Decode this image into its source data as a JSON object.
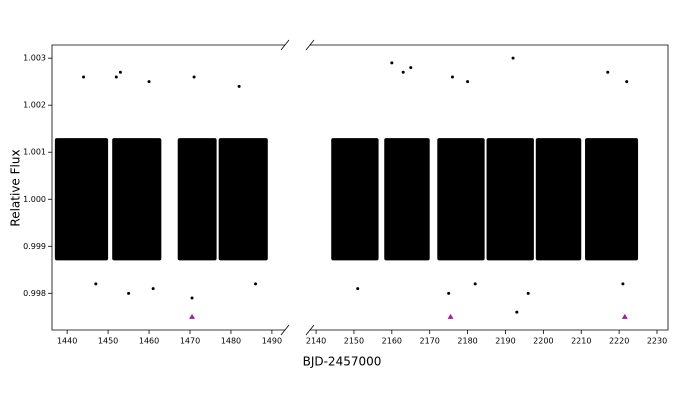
{
  "chart_data": [
    {
      "type": "scatter",
      "ylabel": "Relative Flux",
      "xlabel": "BJD-2457000",
      "xlim": [
        1436.3,
        1493.2
      ],
      "xticks": [
        1440,
        1450,
        1460,
        1470,
        1480,
        1490
      ],
      "ylim": [
        0.99722,
        1.00328
      ],
      "yticks": [
        0.998,
        0.999,
        {
          "value": 1.0,
          "label": "1.000"
        },
        1.001,
        1.002,
        1.003
      ],
      "bands": [
        {
          "x": [
            1437,
            1450
          ],
          "y": [
            0.9987,
            1.0013
          ]
        },
        {
          "x": [
            1451,
            1463
          ],
          "y": [
            0.9987,
            1.0013
          ]
        },
        {
          "x": [
            1467,
            1476.5
          ],
          "y": [
            0.9987,
            1.0013
          ]
        },
        {
          "x": [
            1477,
            1489
          ],
          "y": [
            0.9987,
            1.0013
          ]
        }
      ],
      "series": [
        {
          "color": "#000000",
          "marker": "dot",
          "x": [
            1444,
            1452,
            1453,
            1460,
            1471,
            1482,
            1447,
            1455,
            1461,
            1470.5,
            1486
          ],
          "values": [
            1.0026,
            1.0026,
            1.0027,
            1.0025,
            1.0026,
            1.0024,
            0.9982,
            0.998,
            0.9981,
            0.9979,
            0.9982
          ]
        },
        {
          "color": "#a020a0",
          "marker": "triangle",
          "x": [
            1470.5
          ],
          "values": [
            0.9975
          ]
        }
      ]
    },
    {
      "type": "scatter",
      "xlim": [
        2138.4,
        2232.9
      ],
      "xticks": [
        2140,
        2150,
        2160,
        2170,
        2180,
        2190,
        2200,
        2210,
        2220,
        2230
      ],
      "ylim": [
        0.99722,
        1.00328
      ],
      "bands": [
        {
          "x": [
            2144,
            2156.5
          ],
          "y": [
            0.9987,
            1.0013
          ]
        },
        {
          "x": [
            2158,
            2170
          ],
          "y": [
            0.9987,
            1.0013
          ]
        },
        {
          "x": [
            2172,
            2184.5
          ],
          "y": [
            0.9987,
            1.0013
          ]
        },
        {
          "x": [
            2185,
            2197.5
          ],
          "y": [
            0.9987,
            1.0013
          ]
        },
        {
          "x": [
            2198,
            2210
          ],
          "y": [
            0.9987,
            1.0013
          ]
        },
        {
          "x": [
            2211,
            2225
          ],
          "y": [
            0.9987,
            1.0013
          ]
        }
      ],
      "series": [
        {
          "color": "#000000",
          "marker": "dot",
          "x": [
            2160,
            2163,
            2165,
            2176,
            2180,
            2192,
            2217,
            2222,
            2175,
            2182,
            2193,
            2196,
            2221,
            2151
          ],
          "values": [
            1.0029,
            1.0027,
            1.0028,
            1.0026,
            1.0025,
            1.003,
            1.0027,
            1.0025,
            0.998,
            0.9982,
            0.9976,
            0.998,
            0.9982,
            0.9981
          ]
        },
        {
          "color": "#a020a0",
          "marker": "triangle",
          "x": [
            2175.5,
            2221.5
          ],
          "values": [
            0.9975,
            0.9975
          ]
        }
      ]
    }
  ]
}
